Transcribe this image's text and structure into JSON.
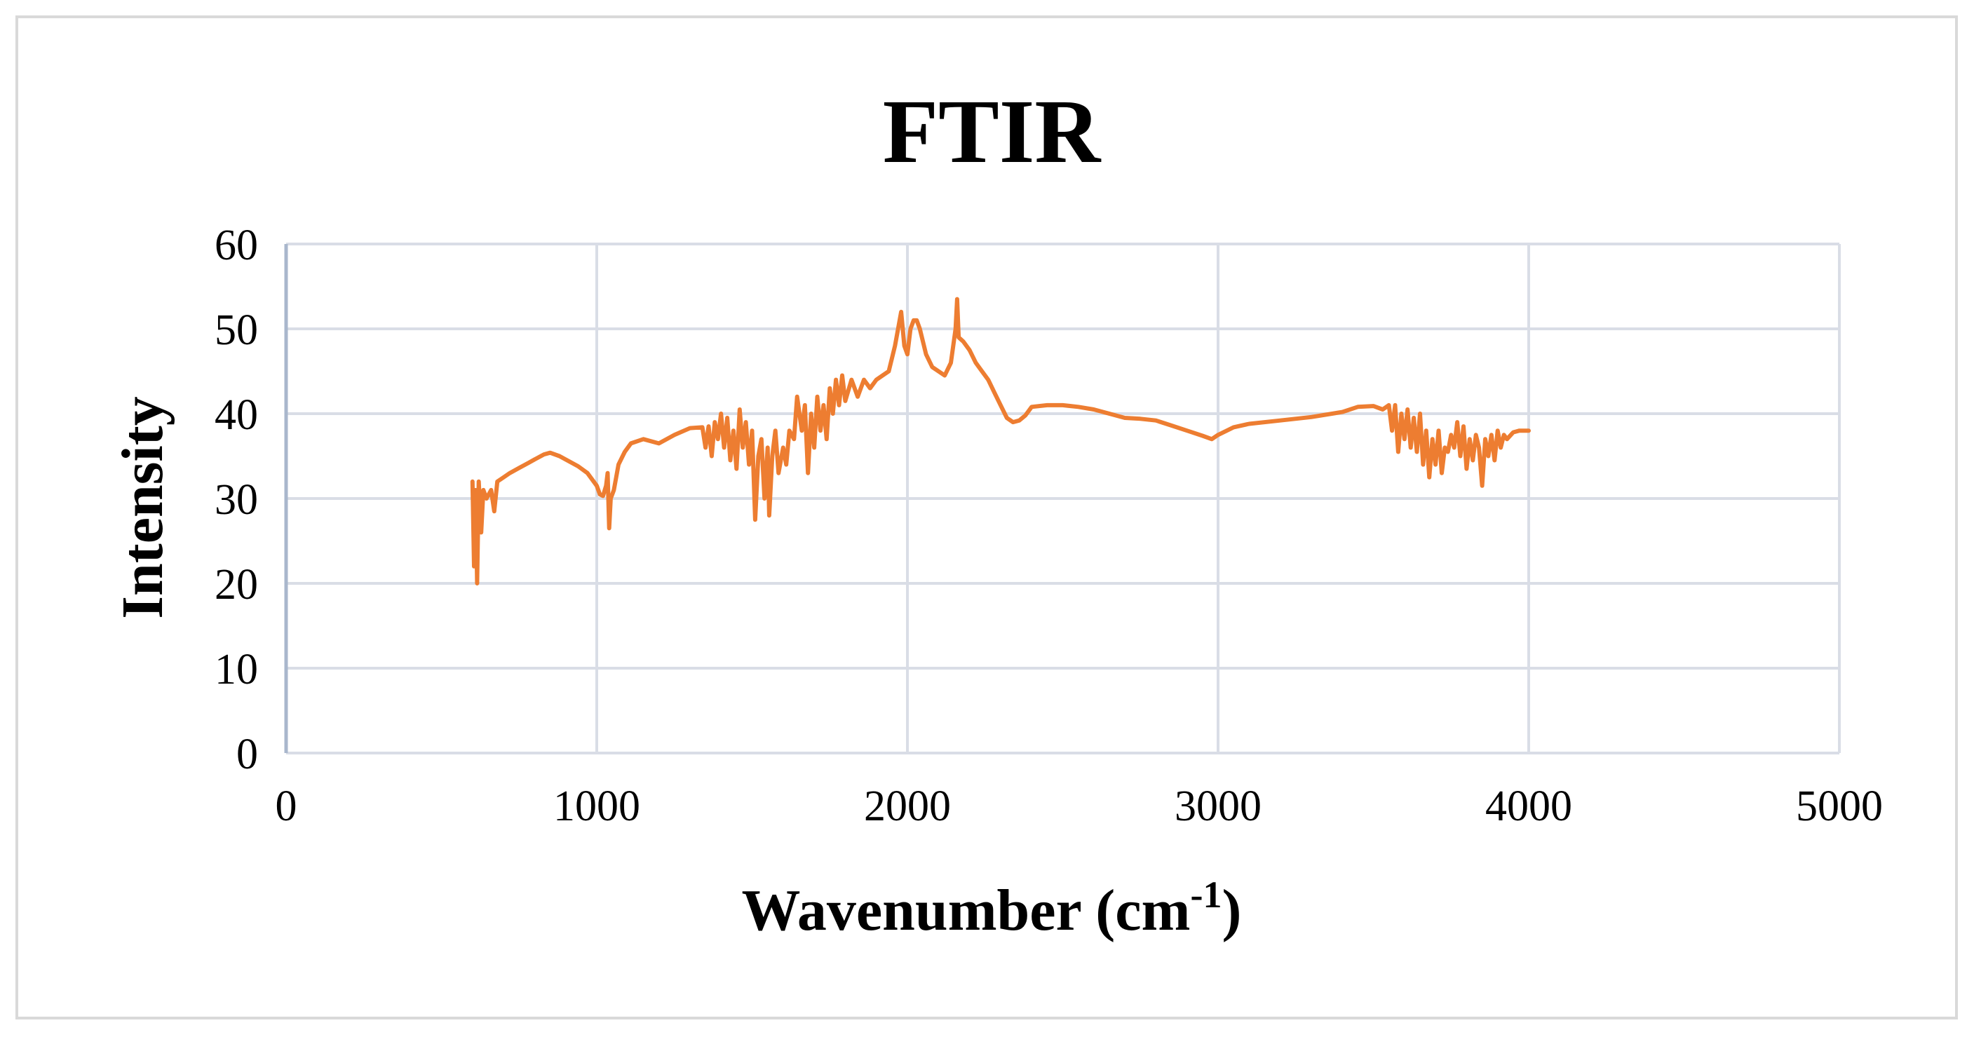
{
  "chart_data": {
    "type": "line",
    "title": "FTIR",
    "xlabel": "Wavenumber (cm",
    "xlabel_sup": "-1",
    "xlabel_suffix": ")",
    "ylabel": "Intensity",
    "xlim": [
      0,
      5000
    ],
    "ylim": [
      0,
      60
    ],
    "x_ticks": [
      "0",
      "1000",
      "2000",
      "3000",
      "4000",
      "5000"
    ],
    "y_ticks": [
      "0",
      "10",
      "20",
      "30",
      "40",
      "50",
      "60"
    ],
    "grid": true,
    "legend": "none",
    "series": [
      {
        "color": "#ed7d31",
        "points": [
          [
            600,
            32
          ],
          [
            605,
            22
          ],
          [
            610,
            31
          ],
          [
            615,
            20
          ],
          [
            620,
            32
          ],
          [
            628,
            26
          ],
          [
            635,
            31
          ],
          [
            645,
            30
          ],
          [
            660,
            31
          ],
          [
            670,
            28.5
          ],
          [
            680,
            32
          ],
          [
            700,
            32.5
          ],
          [
            720,
            33
          ],
          [
            750,
            33.6
          ],
          [
            780,
            34.2
          ],
          [
            800,
            34.6
          ],
          [
            830,
            35.2
          ],
          [
            850,
            35.4
          ],
          [
            880,
            35
          ],
          [
            910,
            34.4
          ],
          [
            940,
            33.8
          ],
          [
            970,
            33
          ],
          [
            1000,
            31.5
          ],
          [
            1010,
            30.5
          ],
          [
            1020,
            30.3
          ],
          [
            1030,
            31.5
          ],
          [
            1035,
            33
          ],
          [
            1040,
            26.5
          ],
          [
            1045,
            30
          ],
          [
            1055,
            31
          ],
          [
            1070,
            34
          ],
          [
            1090,
            35.5
          ],
          [
            1110,
            36.5
          ],
          [
            1150,
            37
          ],
          [
            1200,
            36.5
          ],
          [
            1250,
            37.5
          ],
          [
            1300,
            38.3
          ],
          [
            1340,
            38.4
          ],
          [
            1350,
            36
          ],
          [
            1360,
            38.5
          ],
          [
            1370,
            35
          ],
          [
            1380,
            39
          ],
          [
            1390,
            37
          ],
          [
            1400,
            40
          ],
          [
            1410,
            36
          ],
          [
            1420,
            39.5
          ],
          [
            1430,
            34.5
          ],
          [
            1440,
            38
          ],
          [
            1450,
            33.5
          ],
          [
            1460,
            40.5
          ],
          [
            1470,
            36
          ],
          [
            1480,
            39
          ],
          [
            1490,
            34
          ],
          [
            1500,
            38
          ],
          [
            1510,
            27.5
          ],
          [
            1520,
            35
          ],
          [
            1530,
            37
          ],
          [
            1540,
            30
          ],
          [
            1550,
            36
          ],
          [
            1555,
            28
          ],
          [
            1565,
            35
          ],
          [
            1575,
            38
          ],
          [
            1585,
            33
          ],
          [
            1600,
            36
          ],
          [
            1610,
            34
          ],
          [
            1620,
            38
          ],
          [
            1635,
            37
          ],
          [
            1645,
            42
          ],
          [
            1660,
            38
          ],
          [
            1670,
            41
          ],
          [
            1680,
            33
          ],
          [
            1690,
            40
          ],
          [
            1700,
            36
          ],
          [
            1710,
            42
          ],
          [
            1720,
            38
          ],
          [
            1730,
            41
          ],
          [
            1740,
            37
          ],
          [
            1750,
            43
          ],
          [
            1760,
            40
          ],
          [
            1770,
            44
          ],
          [
            1780,
            41
          ],
          [
            1790,
            44.5
          ],
          [
            1800,
            41.5
          ],
          [
            1820,
            44
          ],
          [
            1840,
            42
          ],
          [
            1860,
            44
          ],
          [
            1880,
            43
          ],
          [
            1900,
            44
          ],
          [
            1920,
            44.5
          ],
          [
            1940,
            45
          ],
          [
            1960,
            48
          ],
          [
            1970,
            50
          ],
          [
            1980,
            52
          ],
          [
            1990,
            48
          ],
          [
            2000,
            47
          ],
          [
            2010,
            50
          ],
          [
            2020,
            51
          ],
          [
            2030,
            51
          ],
          [
            2040,
            50
          ],
          [
            2060,
            47
          ],
          [
            2080,
            45.5
          ],
          [
            2100,
            45
          ],
          [
            2120,
            44.5
          ],
          [
            2140,
            46
          ],
          [
            2155,
            50
          ],
          [
            2160,
            53.5
          ],
          [
            2165,
            49
          ],
          [
            2180,
            48.5
          ],
          [
            2200,
            47.5
          ],
          [
            2220,
            46
          ],
          [
            2240,
            45
          ],
          [
            2260,
            44
          ],
          [
            2280,
            42.5
          ],
          [
            2300,
            41
          ],
          [
            2320,
            39.5
          ],
          [
            2340,
            39
          ],
          [
            2360,
            39.2
          ],
          [
            2380,
            39.8
          ],
          [
            2400,
            40.8
          ],
          [
            2450,
            41
          ],
          [
            2500,
            41
          ],
          [
            2550,
            40.8
          ],
          [
            2600,
            40.5
          ],
          [
            2650,
            40
          ],
          [
            2700,
            39.5
          ],
          [
            2750,
            39.4
          ],
          [
            2800,
            39.2
          ],
          [
            2850,
            38.6
          ],
          [
            2900,
            38
          ],
          [
            2950,
            37.4
          ],
          [
            2980,
            37
          ],
          [
            3000,
            37.5
          ],
          [
            3050,
            38.4
          ],
          [
            3100,
            38.8
          ],
          [
            3200,
            39.2
          ],
          [
            3300,
            39.6
          ],
          [
            3400,
            40.2
          ],
          [
            3450,
            40.8
          ],
          [
            3500,
            40.9
          ],
          [
            3530,
            40.5
          ],
          [
            3550,
            41
          ],
          [
            3560,
            38
          ],
          [
            3570,
            41
          ],
          [
            3580,
            35.5
          ],
          [
            3590,
            40
          ],
          [
            3600,
            37
          ],
          [
            3610,
            40.5
          ],
          [
            3620,
            36
          ],
          [
            3630,
            39.5
          ],
          [
            3640,
            35.5
          ],
          [
            3650,
            40
          ],
          [
            3660,
            34
          ],
          [
            3670,
            38
          ],
          [
            3680,
            32.5
          ],
          [
            3690,
            37
          ],
          [
            3700,
            34
          ],
          [
            3710,
            38
          ],
          [
            3720,
            33
          ],
          [
            3730,
            36
          ],
          [
            3740,
            35.5
          ],
          [
            3750,
            37.5
          ],
          [
            3760,
            36
          ],
          [
            3770,
            39
          ],
          [
            3780,
            35
          ],
          [
            3790,
            38.5
          ],
          [
            3800,
            33.5
          ],
          [
            3810,
            37
          ],
          [
            3820,
            34.5
          ],
          [
            3830,
            37.5
          ],
          [
            3840,
            36
          ],
          [
            3850,
            31.5
          ],
          [
            3860,
            37
          ],
          [
            3870,
            35
          ],
          [
            3880,
            37.5
          ],
          [
            3890,
            34.5
          ],
          [
            3900,
            38
          ],
          [
            3910,
            36
          ],
          [
            3920,
            37.5
          ],
          [
            3930,
            37
          ],
          [
            3950,
            37.8
          ],
          [
            3970,
            38
          ],
          [
            4000,
            38
          ]
        ]
      }
    ]
  }
}
